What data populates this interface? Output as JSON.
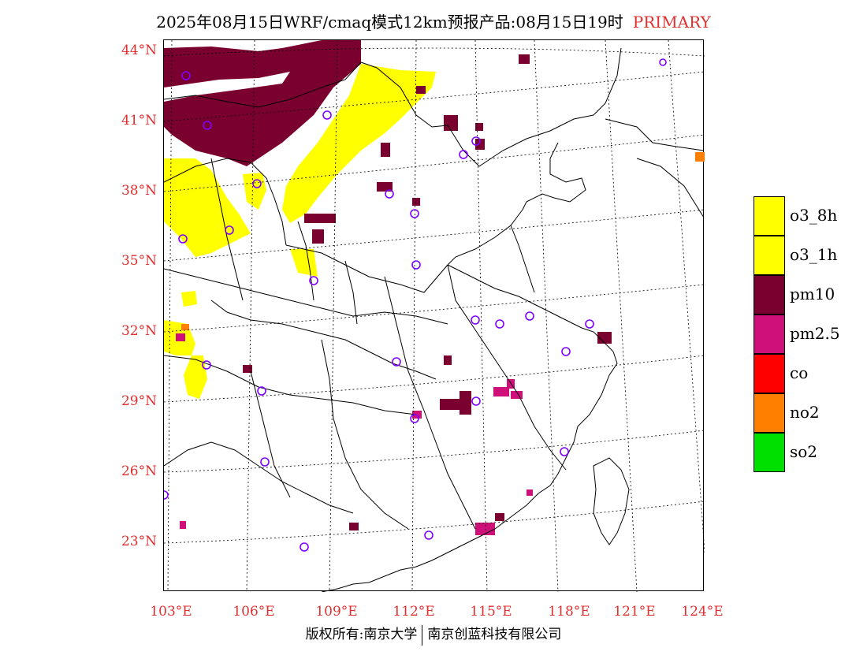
{
  "title": {
    "text": "2025年08月15日WRF/cmaq模式12km预报产品:08月15日19时",
    "tag": "PRIMARY"
  },
  "map": {
    "lat_labels": [
      "44°N",
      "41°N",
      "38°N",
      "35°N",
      "32°N",
      "29°N",
      "26°N",
      "23°N"
    ],
    "lon_labels": [
      "103°E",
      "106°E",
      "109°E",
      "112°E",
      "115°E",
      "118°E",
      "121°E",
      "124°E"
    ]
  },
  "legend": {
    "items": [
      {
        "label": "o3_8h",
        "color": "#ffff00"
      },
      {
        "label": "o3_1h",
        "color": "#ffff00"
      },
      {
        "label": "pm10",
        "color": "#7a0030"
      },
      {
        "label": "pm2.5",
        "color": "#d0107a"
      },
      {
        "label": "co",
        "color": "#ff0000"
      },
      {
        "label": "no2",
        "color": "#ff8000"
      },
      {
        "label": "so2",
        "color": "#00e000"
      }
    ]
  },
  "footer": {
    "left": "版权所有:南京大学",
    "right": "南京创蓝科技有限公司"
  },
  "colors": {
    "o3": "#ffff00",
    "pm10": "#7a0030",
    "pm25": "#d0107a",
    "no2": "#ff8000",
    "station": "#8000ff",
    "label": "#e03030"
  }
}
